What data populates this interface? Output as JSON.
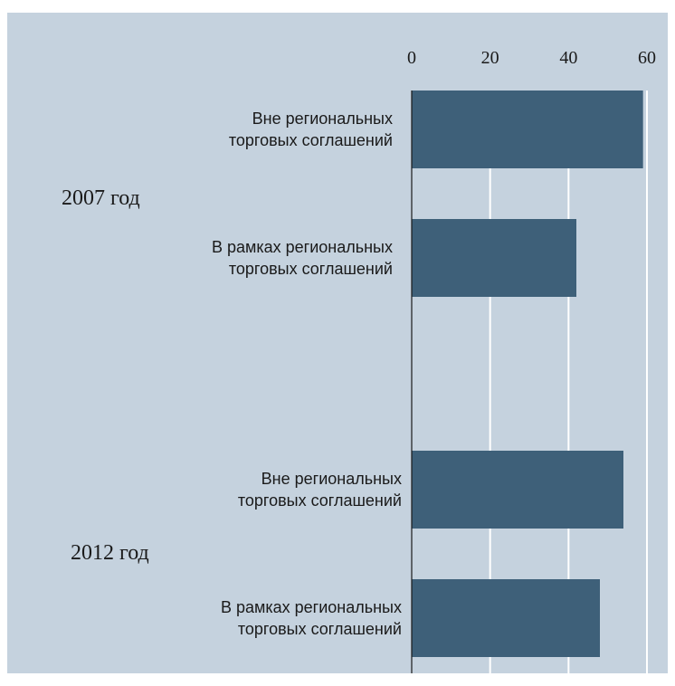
{
  "colors": {
    "background": "#c5d2de",
    "bar": "#3e6079",
    "grid": "#ffffff",
    "axis": "#1a1a1a"
  },
  "chart_data": {
    "type": "bar",
    "orientation": "horizontal",
    "title": "",
    "xlabel": "",
    "ylabel": "",
    "xlim": [
      0,
      60
    ],
    "ticks": [
      0,
      20,
      40,
      60
    ],
    "tick_labels": [
      "0",
      "20",
      "40",
      "60"
    ],
    "grid": true,
    "groups": [
      {
        "name": "2007 год",
        "bars": [
          {
            "label_lines": [
              "Вне региональных",
              "торговых соглашений"
            ],
            "value": 59
          },
          {
            "label_lines": [
              "В рамках региональных",
              "торговых соглашений"
            ],
            "value": 42
          }
        ]
      },
      {
        "name": "2012 год",
        "bars": [
          {
            "label_lines": [
              "Вне региональных",
              "торговых соглашений"
            ],
            "value": 54
          },
          {
            "label_lines": [
              "В рамках региональных",
              "торговых соглашений"
            ],
            "value": 48
          }
        ]
      }
    ]
  }
}
